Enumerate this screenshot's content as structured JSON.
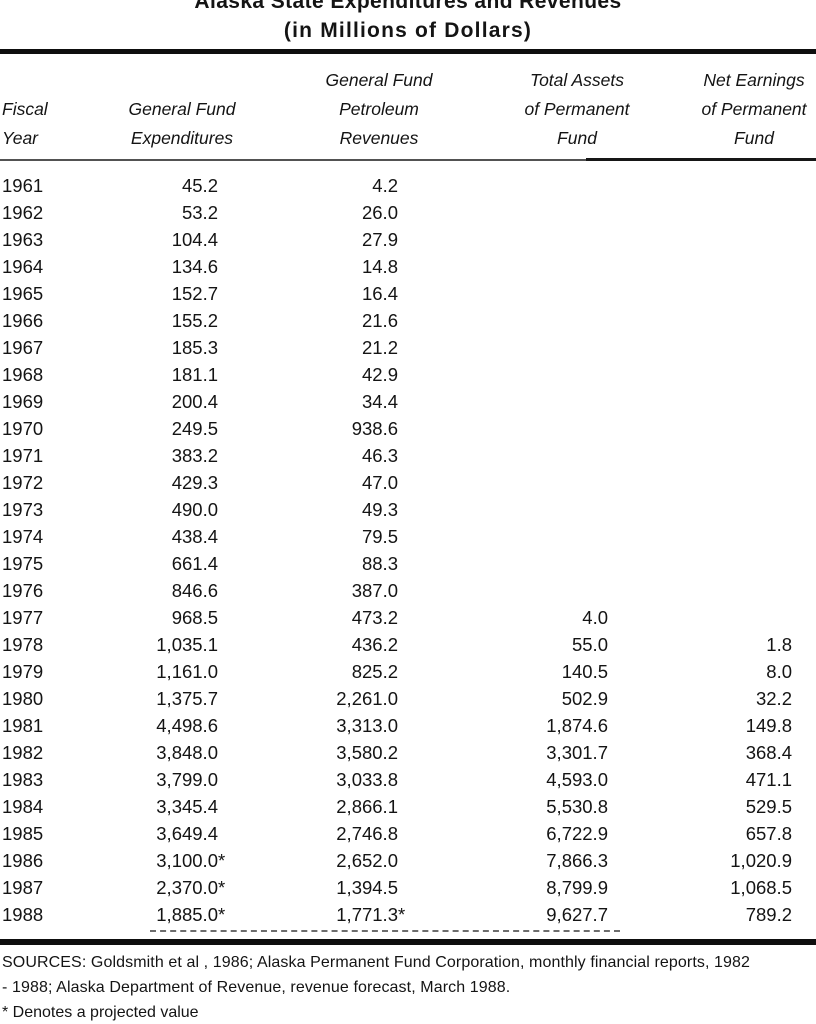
{
  "page": {
    "title": "Alaska State Expenditures and Revenues",
    "subtitle": "(in Millions of Dollars)"
  },
  "table": {
    "columns": [
      {
        "lines": [
          "Fiscal",
          "Year"
        ]
      },
      {
        "lines": [
          "General Fund",
          "Expenditures"
        ]
      },
      {
        "lines": [
          "General Fund",
          "Petroleum",
          "Revenues"
        ]
      },
      {
        "lines": [
          "Total Assets",
          "of Permanent",
          "Fund"
        ]
      },
      {
        "lines": [
          "Net Earnings",
          "of Permanent",
          "Fund"
        ]
      }
    ],
    "rows": [
      [
        "1961",
        "45.2",
        "4.2",
        "",
        ""
      ],
      [
        "1962",
        "53.2",
        "26.0",
        "",
        ""
      ],
      [
        "1963",
        "104.4",
        "27.9",
        "",
        ""
      ],
      [
        "1964",
        "134.6",
        "14.8",
        "",
        ""
      ],
      [
        "1965",
        "152.7",
        "16.4",
        "",
        ""
      ],
      [
        "1966",
        "155.2",
        "21.6",
        "",
        ""
      ],
      [
        "1967",
        "185.3",
        "21.2",
        "",
        ""
      ],
      [
        "1968",
        "181.1",
        "42.9",
        "",
        ""
      ],
      [
        "1969",
        "200.4",
        "34.4",
        "",
        ""
      ],
      [
        "1970",
        "249.5",
        "938.6",
        "",
        ""
      ],
      [
        "1971",
        "383.2",
        "46.3",
        "",
        ""
      ],
      [
        "1972",
        "429.3",
        "47.0",
        "",
        ""
      ],
      [
        "1973",
        "490.0",
        "49.3",
        "",
        ""
      ],
      [
        "1974",
        "438.4",
        "79.5",
        "",
        ""
      ],
      [
        "1975",
        "661.4",
        "88.3",
        "",
        ""
      ],
      [
        "1976",
        "846.6",
        "387.0",
        "",
        ""
      ],
      [
        "1977",
        "968.5",
        "473.2",
        "4.0",
        ""
      ],
      [
        "1978",
        "1,035.1",
        "436.2",
        "55.0",
        "1.8"
      ],
      [
        "1979",
        "1,161.0",
        "825.2",
        "140.5",
        "8.0"
      ],
      [
        "1980",
        "1,375.7",
        "2,261.0",
        "502.9",
        "32.2"
      ],
      [
        "1981",
        "4,498.6",
        "3,313.0",
        "1,874.6",
        "149.8"
      ],
      [
        "1982",
        "3,848.0",
        "3,580.2",
        "3,301.7",
        "368.4"
      ],
      [
        "1983",
        "3,799.0",
        "3,033.8",
        "4,593.0",
        "471.1"
      ],
      [
        "1984",
        "3,345.4",
        "2,866.1",
        "5,530.8",
        "529.5"
      ],
      [
        "1985",
        "3,649.4",
        "2,746.8",
        "6,722.9",
        "657.8"
      ],
      [
        "1986",
        "3,100.0*",
        "2,652.0",
        "7,866.3",
        "1,020.9"
      ],
      [
        "1987",
        "2,370.0*",
        "1,394.5",
        "8,799.9",
        "1,068.5"
      ],
      [
        "1988",
        "1,885.0*",
        "1,771.3*",
        "9,627.7",
        "789.2"
      ]
    ]
  },
  "footer": {
    "sources_line1": "SOURCES: Goldsmith et al , 1986; Alaska Permanent Fund Corporation, monthly financial reports, 1982",
    "sources_line2": "- 1988; Alaska Department of Revenue, revenue forecast, March 1988.",
    "footnote": "* Denotes a projected value"
  },
  "colors": {
    "ink": "#141414",
    "paper": "#ffffff",
    "thick_rule": "#0e0e0e",
    "thin_rule": "#525252"
  }
}
